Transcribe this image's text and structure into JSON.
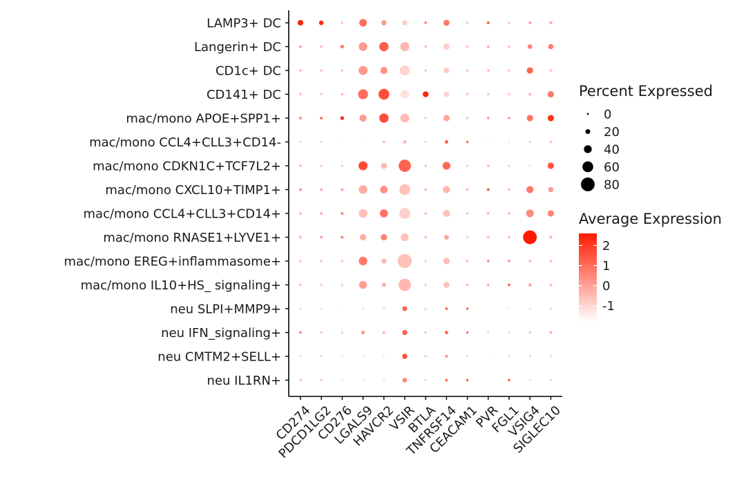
{
  "chart_data": {
    "type": "dotplot",
    "title": "",
    "xlabel": "",
    "ylabel": "",
    "genes": [
      "CD274",
      "PDCD1LG2",
      "CD276",
      "LGALS9",
      "HAVCR2",
      "VSIR",
      "BTLA",
      "TNFRSF14",
      "CEACAM1",
      "PVR",
      "FGL1",
      "VSIG4",
      "SIGLEC10"
    ],
    "cell_types": [
      "LAMP3+ DC",
      "Langerin+ DC",
      "CD1c+ DC",
      "CD141+ DC",
      "mac/mono APOE+SPP1+",
      "mac/mono CCL4+CLL3+CD14-",
      "mac/mono CDKN1C+TCF7L2+",
      "mac/mono CXCL10+TIMP1+",
      "mac/mono CCL4+CLL3+CD14+",
      "mac/mono RNASE1+LYVE1+",
      "mac/mono EREG+inflammasome+",
      "mac/mono IL10+HS_ signaling+",
      "neu SLPI+MMP9+",
      "neu IFN_signaling+",
      "neu CMTM2+SELL+",
      "neu IL1RN+"
    ],
    "percent_expressed": [
      [
        25,
        18,
        3,
        38,
        22,
        22,
        4,
        28,
        3,
        6,
        2,
        6,
        9
      ],
      [
        5,
        4,
        10,
        45,
        50,
        48,
        3,
        30,
        3,
        3,
        3,
        18,
        22
      ],
      [
        3,
        3,
        3,
        48,
        35,
        55,
        3,
        25,
        3,
        3,
        3,
        30,
        10
      ],
      [
        3,
        3,
        3,
        55,
        60,
        45,
        26,
        25,
        3,
        3,
        3,
        6,
        30
      ],
      [
        8,
        7,
        12,
        35,
        50,
        48,
        3,
        30,
        3,
        3,
        3,
        30,
        30
      ],
      [
        3,
        3,
        2,
        3,
        5,
        10,
        3,
        10,
        4,
        2,
        2,
        3,
        4
      ],
      [
        4,
        3,
        3,
        48,
        28,
        70,
        3,
        40,
        3,
        3,
        3,
        3,
        30
      ],
      [
        6,
        5,
        6,
        45,
        38,
        60,
        3,
        35,
        3,
        5,
        3,
        35,
        22
      ],
      [
        4,
        4,
        6,
        45,
        42,
        62,
        3,
        35,
        3,
        3,
        3,
        40,
        30
      ],
      [
        4,
        4,
        6,
        30,
        30,
        40,
        3,
        20,
        3,
        3,
        3,
        80,
        6
      ],
      [
        3,
        3,
        3,
        45,
        20,
        82,
        3,
        30,
        3,
        3,
        3,
        5,
        5
      ],
      [
        3,
        3,
        3,
        40,
        15,
        70,
        3,
        28,
        3,
        3,
        3,
        8,
        6
      ],
      [
        3,
        2,
        2,
        3,
        3,
        20,
        3,
        6,
        3,
        2,
        2,
        3,
        3
      ],
      [
        5,
        3,
        3,
        10,
        5,
        22,
        3,
        10,
        3,
        3,
        3,
        3,
        5
      ],
      [
        3,
        3,
        2,
        3,
        3,
        22,
        3,
        6,
        3,
        2,
        3,
        3,
        3
      ],
      [
        3,
        3,
        2,
        3,
        3,
        18,
        3,
        6,
        3,
        2,
        4,
        3,
        3
      ]
    ],
    "average_expression": [
      [
        2.4,
        2.3,
        -0.5,
        1.0,
        0.2,
        -0.8,
        0.6,
        0.8,
        -0.8,
        1.3,
        -0.5,
        0.0,
        -0.3
      ],
      [
        0.0,
        -0.3,
        1.0,
        0.2,
        1.3,
        -0.4,
        -0.4,
        -0.9,
        -0.5,
        0.0,
        -0.4,
        0.6,
        0.8
      ],
      [
        -0.3,
        -0.5,
        -0.5,
        0.2,
        0.3,
        -1.0,
        -0.6,
        -0.8,
        -0.5,
        -0.3,
        -0.5,
        1.2,
        -0.9
      ],
      [
        -0.5,
        -0.7,
        -0.3,
        1.0,
        1.6,
        -1.2,
        2.4,
        -1.0,
        -0.5,
        -0.5,
        -0.5,
        -0.5,
        0.8
      ],
      [
        0.2,
        0.8,
        2.3,
        0.1,
        1.6,
        -0.5,
        -0.8,
        -0.1,
        -0.7,
        0.4,
        0.5,
        0.9,
        2.1
      ],
      [
        -0.9,
        -1.0,
        -1.5,
        -1.7,
        -0.5,
        -0.4,
        -1.0,
        1.4,
        1.0,
        -1.5,
        -1.3,
        -0.9,
        -0.5
      ],
      [
        -0.4,
        -0.7,
        -0.8,
        1.7,
        -0.5,
        1.2,
        -0.5,
        1.1,
        -0.7,
        -0.3,
        -0.9,
        -1.2,
        1.5
      ],
      [
        0.2,
        -0.2,
        0.0,
        -0.2,
        0.3,
        -0.6,
        -0.3,
        -0.4,
        -0.3,
        1.5,
        -0.3,
        0.8,
        0.2
      ],
      [
        -0.3,
        -0.1,
        0.6,
        -0.6,
        0.9,
        -0.9,
        -0.4,
        -0.6,
        -0.5,
        -0.1,
        -0.3,
        0.4,
        0.6
      ],
      [
        -0.3,
        0.2,
        0.6,
        -0.2,
        0.6,
        -0.6,
        -0.3,
        -0.1,
        -0.8,
        -0.3,
        -0.3,
        2.6,
        -0.2
      ],
      [
        -0.5,
        -0.5,
        -0.5,
        0.8,
        -0.3,
        -0.6,
        -0.6,
        -0.5,
        -0.4,
        0.7,
        0.6,
        -0.4,
        -0.6
      ],
      [
        -0.5,
        -0.6,
        -0.8,
        0.1,
        -0.2,
        -0.4,
        -0.6,
        -0.6,
        -0.3,
        0.0,
        1.8,
        -0.1,
        -0.5
      ],
      [
        -0.9,
        -1.1,
        -1.5,
        -1.2,
        -1.0,
        1.2,
        -0.9,
        0.8,
        1.2,
        -1.7,
        -1.3,
        -1.1,
        -0.9
      ],
      [
        0.4,
        -0.6,
        -0.8,
        0.4,
        -0.2,
        1.2,
        -0.6,
        1.2,
        0.9,
        -1.0,
        -1.1,
        -0.7,
        -0.2
      ],
      [
        -0.9,
        -0.9,
        -1.4,
        -1.4,
        -1.4,
        1.6,
        -0.8,
        0.4,
        -0.9,
        -1.6,
        -1.1,
        -0.9,
        -1.0
      ],
      [
        -0.6,
        -0.7,
        -1.3,
        -1.4,
        -1.3,
        0.6,
        -0.9,
        0.9,
        1.3,
        -1.7,
        1.2,
        -1.0,
        -0.9
      ]
    ],
    "size_legend": {
      "title": "Percent Expressed",
      "values": [
        0,
        20,
        40,
        60,
        80
      ],
      "labels": [
        "0",
        "20",
        "40",
        "60",
        "80"
      ]
    },
    "color_legend": {
      "title": "Average Expression",
      "ticks": [
        2,
        1,
        0,
        -1
      ],
      "labels": [
        "2",
        "1",
        "0",
        "-1"
      ],
      "range": [
        -1.8,
        2.6
      ],
      "low_color": "#FFFFFF",
      "high_color": "#FF1A00"
    },
    "colors": {
      "axis": "#000000",
      "text": "#1a1a1a"
    }
  }
}
